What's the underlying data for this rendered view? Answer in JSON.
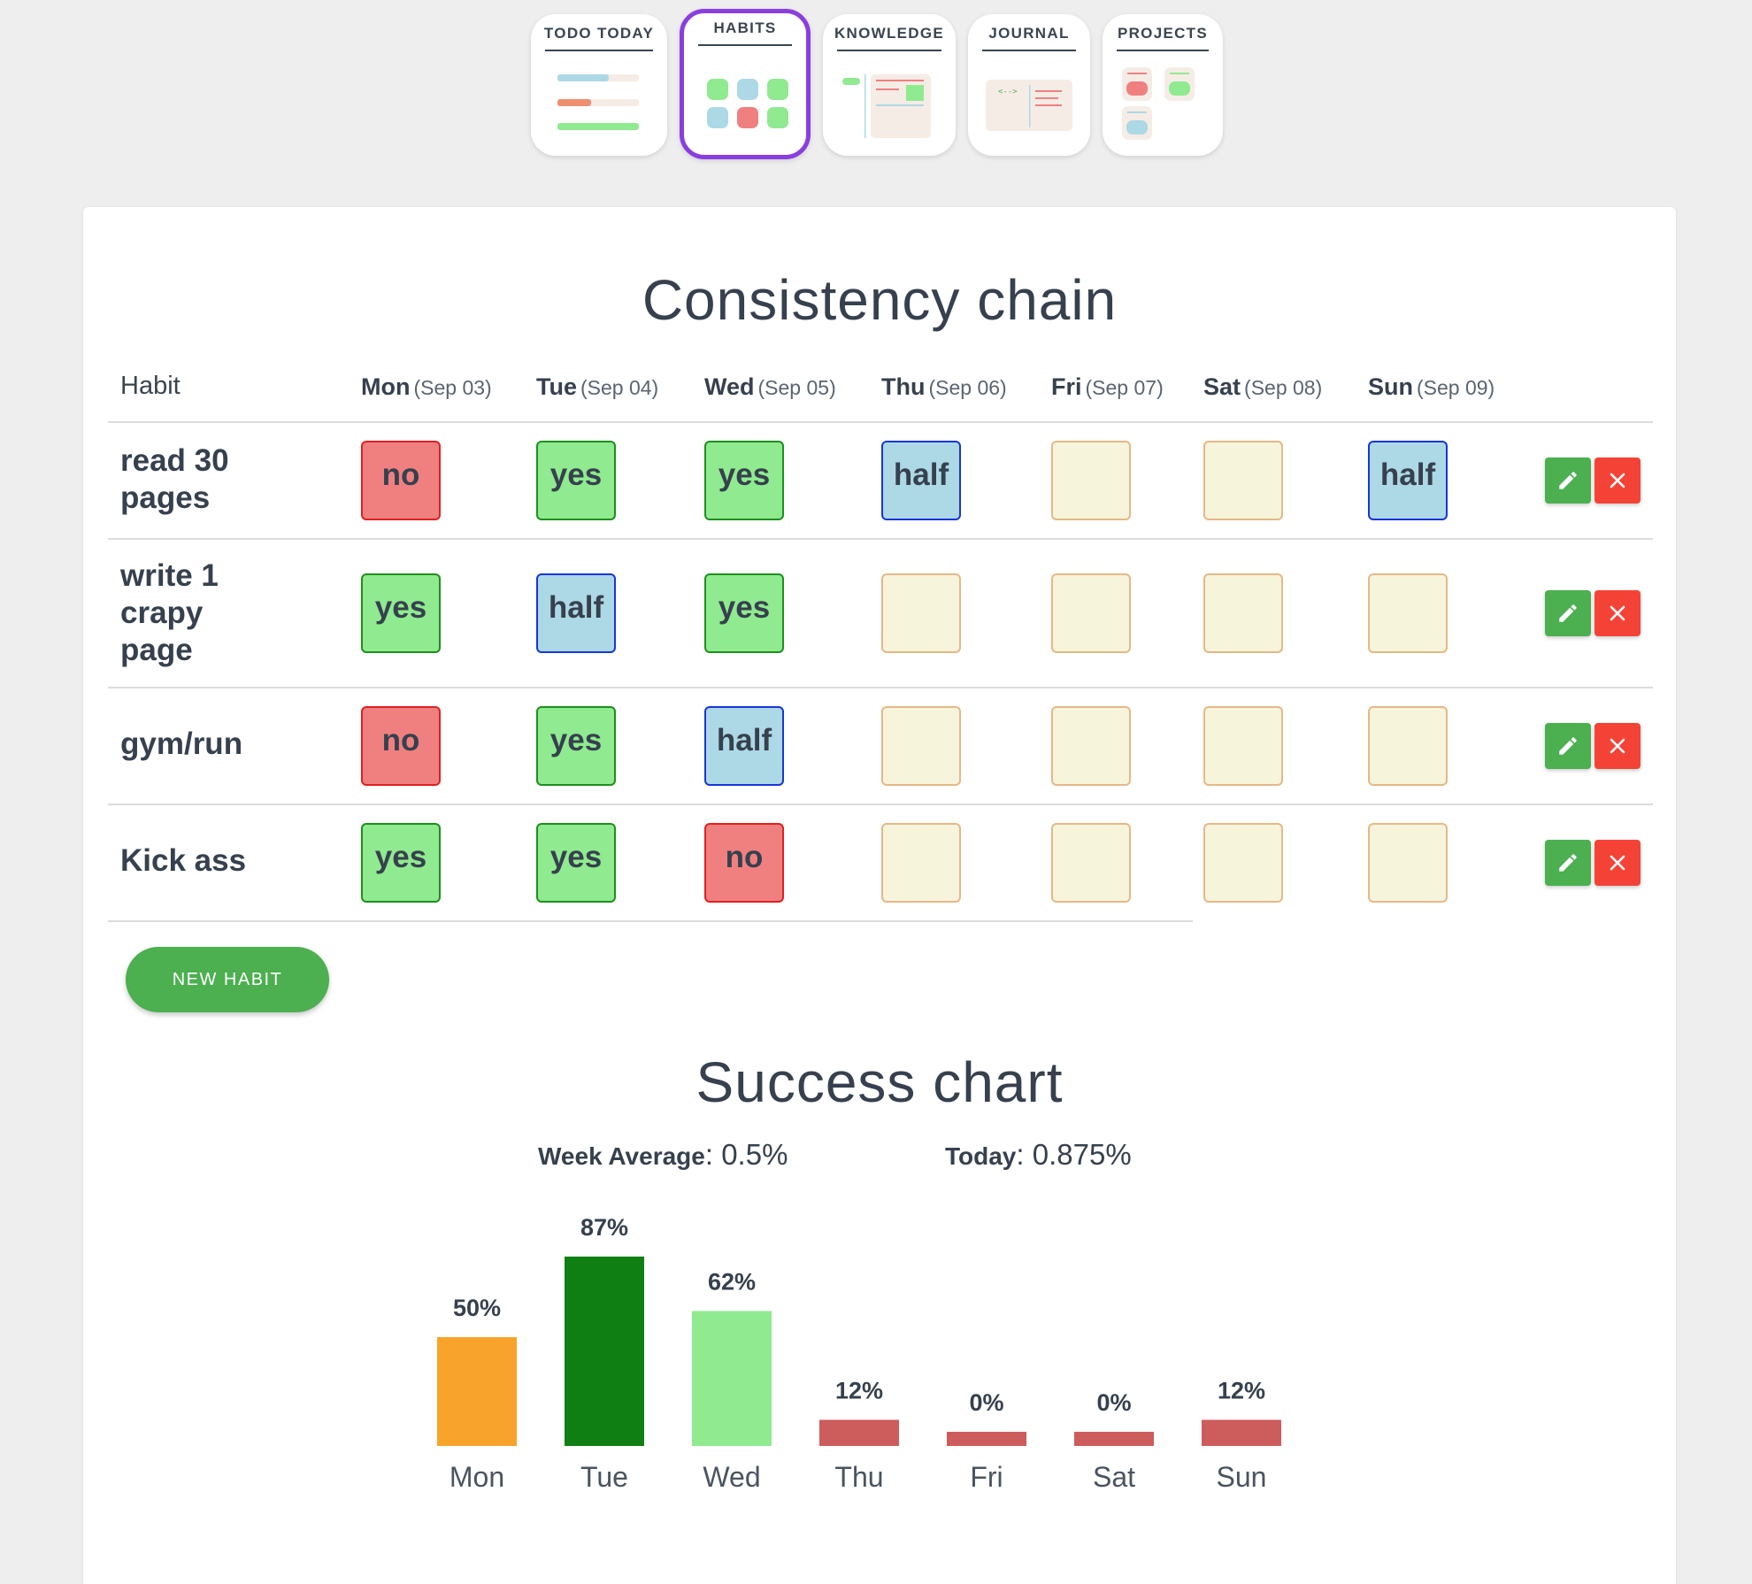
{
  "nav": {
    "tiles": [
      {
        "label": "TODO TODAY"
      },
      {
        "label": "HABITS"
      },
      {
        "label": "KNOWLEDGE"
      },
      {
        "label": "JOURNAL"
      },
      {
        "label": "PROJECTS"
      }
    ],
    "active": "HABITS"
  },
  "consistency": {
    "title": "Consistency chain",
    "habit_header": "Habit",
    "days": [
      {
        "day": "Mon",
        "date": "(Sep 03)"
      },
      {
        "day": "Tue",
        "date": "(Sep 04)"
      },
      {
        "day": "Wed",
        "date": "(Sep 05)"
      },
      {
        "day": "Thu",
        "date": "(Sep 06)"
      },
      {
        "day": "Fri",
        "date": "(Sep 07)"
      },
      {
        "day": "Sat",
        "date": "(Sep 08)"
      },
      {
        "day": "Sun",
        "date": "(Sep 09)"
      }
    ],
    "habits": [
      {
        "name": "read 30 pages",
        "cells": [
          "no",
          "yes",
          "yes",
          "half",
          "",
          "",
          "half"
        ]
      },
      {
        "name": "write 1 crapy page",
        "cells": [
          "yes",
          "half",
          "yes",
          "",
          "",
          "",
          ""
        ]
      },
      {
        "name": "gym/run",
        "cells": [
          "no",
          "yes",
          "half",
          "",
          "",
          "",
          ""
        ]
      },
      {
        "name": "Kick ass",
        "cells": [
          "yes",
          "yes",
          "no",
          "",
          "",
          "",
          ""
        ]
      }
    ],
    "new_habit_label": "NEW HABIT"
  },
  "success": {
    "title": "Success chart",
    "week_average_label": "Week Average",
    "week_average_value": "0.5%",
    "today_label": "Today",
    "today_value": "0.875%"
  },
  "colors": {
    "accent_active": "#8a3ee0",
    "yes": "#90ea8f",
    "no": "#f08080",
    "half": "#add8e6",
    "empty": "#f7f4dc",
    "edit": "#4caf50",
    "delete": "#f44336"
  },
  "chart_data": {
    "type": "bar",
    "categories": [
      "Mon",
      "Tue",
      "Wed",
      "Thu",
      "Fri",
      "Sat",
      "Sun"
    ],
    "values": [
      50,
      87,
      62,
      12,
      0,
      0,
      12
    ],
    "value_labels": [
      "50%",
      "87%",
      "62%",
      "12%",
      "0%",
      "0%",
      "12%"
    ],
    "bar_colors": [
      "#f8a42c",
      "#0f7f14",
      "#90ea8f",
      "#cd5c5c",
      "#cd5c5c",
      "#cd5c5c",
      "#cd5c5c"
    ],
    "ylim": [
      0,
      100
    ]
  }
}
